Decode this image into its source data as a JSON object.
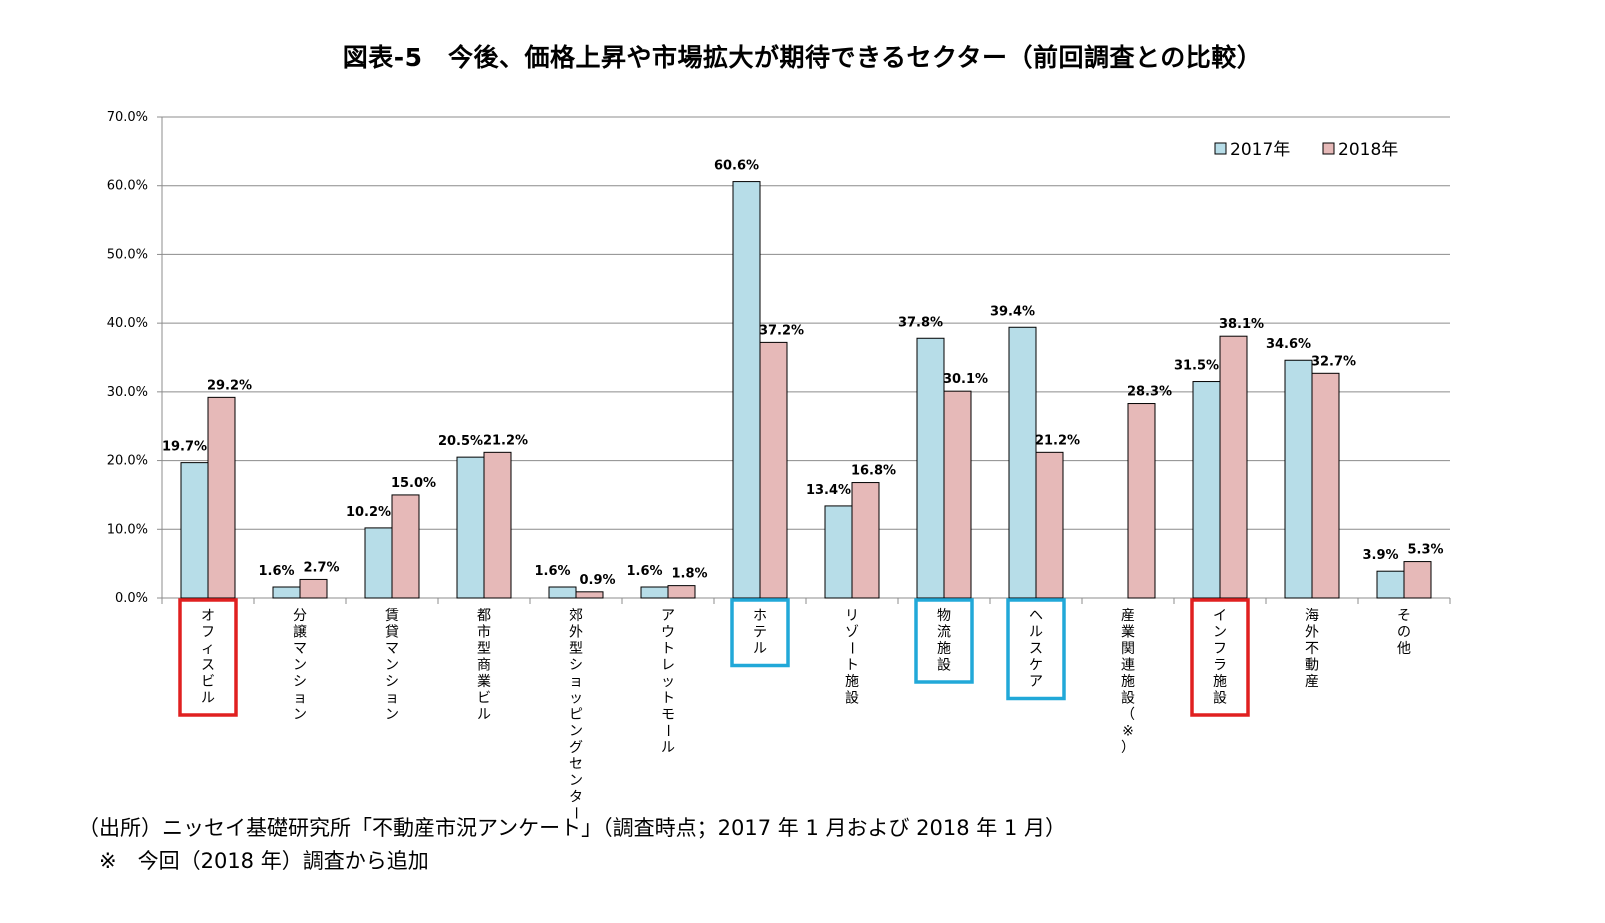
{
  "chart_data": {
    "type": "bar",
    "title": "図表-5　今後、価格上昇や市場拡大が期待できるセクター（前回調査との比較）",
    "categories": [
      "オフィスビル",
      "分譲マンション",
      "賃貸マンション",
      "都市型商業ビル",
      "郊外型ショッピングセンター",
      "アウトレットモール",
      "ホテル",
      "リゾート施設",
      "物流施設",
      "ヘルスケア",
      "産業関連施設（※）",
      "インフラ施設",
      "海外不動産",
      "その他"
    ],
    "series": [
      {
        "name": "2017年",
        "color": "#b7dde8",
        "values": [
          19.7,
          1.6,
          10.2,
          20.5,
          1.6,
          1.6,
          60.6,
          13.4,
          37.8,
          39.4,
          null,
          31.5,
          34.6,
          3.9
        ],
        "labels": [
          "19.7%",
          "1.6%",
          "10.2%",
          "20.5%",
          "1.6%",
          "1.6%",
          "60.6%",
          "13.4%",
          "37.8%",
          "39.4%",
          "",
          "31.5%",
          "34.6%",
          "3.9%"
        ]
      },
      {
        "name": "2018年",
        "color": "#e6b9b8",
        "values": [
          29.2,
          2.7,
          15.0,
          21.2,
          0.9,
          1.8,
          37.2,
          16.8,
          30.1,
          21.2,
          28.3,
          38.1,
          32.7,
          5.3
        ],
        "labels": [
          "29.2%",
          "2.7%",
          "15.0%",
          "21.2%",
          "0.9%",
          "1.8%",
          "37.2%",
          "16.8%",
          "30.1%",
          "21.2%",
          "28.3%",
          "38.1%",
          "32.7%",
          "5.3%"
        ]
      }
    ],
    "y_ticks": [
      "0.0%",
      "10.0%",
      "20.0%",
      "30.0%",
      "40.0%",
      "50.0%",
      "60.0%",
      "70.0%"
    ],
    "ylim": [
      0,
      70
    ],
    "grid": true,
    "legend_position": "top-right",
    "highlights": {
      "red": [
        "オフィスビル",
        "インフラ施設"
      ],
      "blue": [
        "ホテル",
        "物流施設",
        "ヘルスケア"
      ]
    },
    "highlight_colors": {
      "red": "#e02020",
      "blue": "#21a8d8"
    }
  },
  "notes": [
    "（出所）ニッセイ基礎研究所「不動産市況アンケート」（調査時点；2017 年 1 月および 2018 年 1 月）",
    "　※　今回（2018 年）調査から追加"
  ]
}
